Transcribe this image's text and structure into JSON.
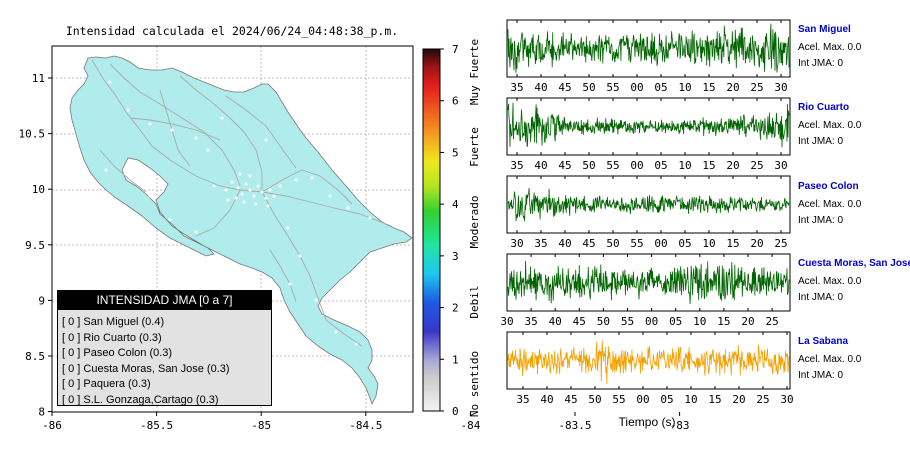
{
  "map": {
    "title": "Intensidad calculada el 2024/06/24_04:48:38_p.m.",
    "x_ticks": [
      "-86",
      "-85.5",
      "-85",
      "-84.5",
      "-84",
      "-83.5",
      "-83"
    ],
    "y_ticks": [
      "11",
      "10.5",
      "10",
      "9.5",
      "9",
      "8.5",
      "8"
    ],
    "land_color": "#b0ecec",
    "legend": {
      "title": "INTENSIDAD JMA [0 a 7]",
      "rows": [
        "[ 0 ]  San Miguel (0.4)",
        "[ 0 ]  Rio Cuarto (0.3)",
        "[ 0 ]  Paseo Colon (0.3)",
        "[ 0 ]  Cuesta Moras, San Jose (0.3)",
        "[ 0 ]  Paquera (0.3)",
        "[ 0 ]  S.L. Gonzaga,Cartago (0.3)"
      ]
    }
  },
  "colorbar": {
    "ticks": [
      "0",
      "1",
      "2",
      "3",
      "4",
      "5",
      "6",
      "7"
    ],
    "labels": [
      "No sentido",
      "Debil",
      "Moderado",
      "Fuerte",
      "Muy Fuerte"
    ]
  },
  "chart_data": {
    "type": "line",
    "xlabel": "Tiempo (s)",
    "series": [
      {
        "name": "San Miguel",
        "accel_label": "Acel. Max. 0.0",
        "int_label": "Int JMA: 0",
        "color": "#006400",
        "ticks": [
          "35",
          "40",
          "45",
          "50",
          "55",
          "00",
          "05",
          "10",
          "15",
          "20",
          "25",
          "30"
        ]
      },
      {
        "name": "Rio Cuarto",
        "accel_label": "Acel. Max. 0.0",
        "int_label": "Int JMA: 0",
        "color": "#006400",
        "ticks": [
          "35",
          "40",
          "45",
          "50",
          "55",
          "00",
          "05",
          "10",
          "15",
          "20",
          "25",
          "30"
        ]
      },
      {
        "name": "Paseo Colon",
        "accel_label": "Acel. Max. 0.0",
        "int_label": "Int JMA: 0",
        "color": "#006400",
        "ticks": [
          "30",
          "35",
          "40",
          "45",
          "50",
          "55",
          "00",
          "05",
          "10",
          "15",
          "20",
          "25"
        ]
      },
      {
        "name": "Cuesta Moras, San Jose",
        "accel_label": "Acel. Max. 0.0",
        "int_label": "Int JMA: 0",
        "color": "#006400",
        "ticks": [
          "30",
          "35",
          "40",
          "45",
          "50",
          "55",
          "00",
          "05",
          "10",
          "15",
          "20",
          "25"
        ]
      },
      {
        "name": "La Sabana",
        "accel_label": "Acel. Max. 0.0",
        "int_label": "Int JMA: 0",
        "color": "#f5a000",
        "ticks": [
          "35",
          "40",
          "45",
          "50",
          "55",
          "00",
          "05",
          "10",
          "15",
          "20",
          "25",
          "30"
        ]
      }
    ]
  }
}
